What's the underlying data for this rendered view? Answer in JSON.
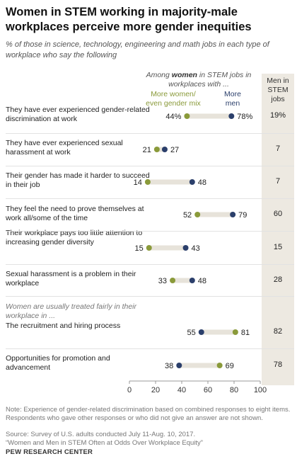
{
  "title": "Women in STEM working in majority-male workplaces perceive more gender inequities",
  "subtitle": "% of those in science, technology, engineering and math jobs in each type of workplace who say the following",
  "header": {
    "women_prefix": "Among ",
    "women_bold": "women",
    "women_suffix": " in STEM jobs in workplaces with ...",
    "men": "Men in STEM jobs"
  },
  "colors": {
    "green": "#8a9a3a",
    "blue": "#2b3f6b",
    "bar": "#e7e3da",
    "band": "#ede9e1"
  },
  "section_label": "Women are usually treated fairly in their workplace in ...",
  "chart_data": {
    "type": "dot",
    "title": "Women in STEM working in majority-male workplaces perceive more gender inequities",
    "xlim": [
      0,
      100
    ],
    "xticks": [
      0,
      20,
      40,
      60,
      80,
      100
    ],
    "series": [
      {
        "name": "More women/ even gender mix",
        "color": "#8a9a3a"
      },
      {
        "name": "More men",
        "color": "#2b3f6b"
      }
    ],
    "rows": [
      {
        "label": "They have ever experienced gender-related discrimination at work",
        "women_mix": 44,
        "women_men": 78,
        "women_mix_label": "44%",
        "women_men_label": "78%",
        "men": "19%"
      },
      {
        "label": "They have ever experienced sexual harassment at work",
        "women_mix": 21,
        "women_men": 27,
        "women_mix_label": "21",
        "women_men_label": "27",
        "men": "7"
      },
      {
        "label": "Their gender has made it harder to succeed in their job",
        "women_mix": 14,
        "women_men": 48,
        "women_mix_label": "14",
        "women_men_label": "48",
        "men": "7"
      },
      {
        "label": "They feel the need to prove themselves at work all/some of the time",
        "women_mix": 52,
        "women_men": 79,
        "women_mix_label": "52",
        "women_men_label": "79",
        "men": "60"
      },
      {
        "label": "Their workplace pays too little attention to increasing gender diversity",
        "women_mix": 15,
        "women_men": 43,
        "women_mix_label": "15",
        "women_men_label": "43",
        "men": "15"
      },
      {
        "label": "Sexual harassment is a problem in their workplace",
        "women_mix": 33,
        "women_men": 48,
        "women_mix_label": "33",
        "women_men_label": "48",
        "men": "28"
      },
      {
        "label": "The recruitment and hiring process",
        "women_mix": 81,
        "women_men": 55,
        "women_mix_label": "81",
        "women_men_label": "55",
        "men": "82"
      },
      {
        "label": "Opportunities for promotion and advancement",
        "women_mix": 69,
        "women_men": 38,
        "women_mix_label": "69",
        "women_men_label": "38",
        "men": "78"
      }
    ]
  },
  "notes": "Note: Experience of gender-related discrimination based on combined responses to eight items. Respondents who gave other responses or who did not give an answer are not shown.",
  "source": "Source: Survey of U.S. adults conducted July 11-Aug. 10, 2017.",
  "report": "“Women and Men in STEM Often at Odds Over Workplace Equity”",
  "org": "PEW RESEARCH CENTER"
}
